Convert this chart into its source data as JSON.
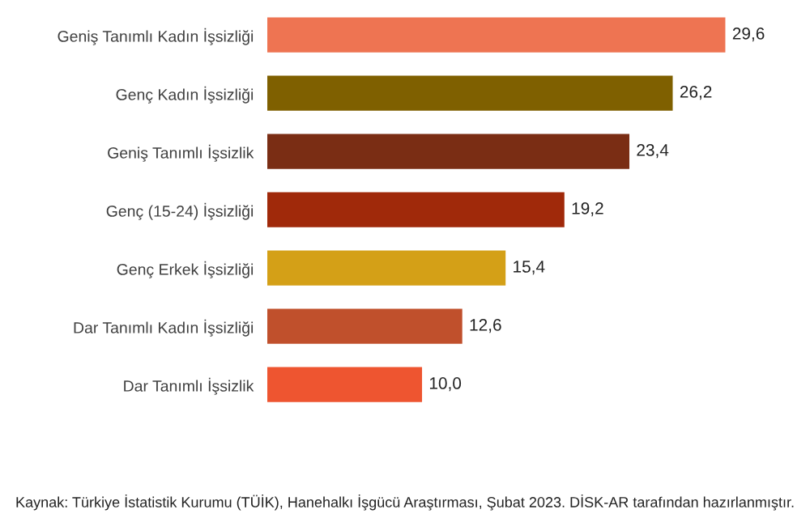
{
  "chart_data": {
    "type": "bar",
    "orientation": "horizontal",
    "categories": [
      "Geniş Tanımlı Kadın İşsizliği",
      "Genç Kadın İşsizliği",
      "Geniş Tanımlı İşsizlik",
      "Genç (15-24) İşsizliği",
      "Genç Erkek İşsizliği",
      "Dar Tanımlı Kadın İşsizliği",
      "Dar Tanımlı İşsizlik"
    ],
    "values": [
      29.6,
      26.2,
      23.4,
      19.2,
      15.4,
      12.6,
      10.0
    ],
    "value_labels": [
      "29,6",
      "26,2",
      "23,4",
      "19,2",
      "15,4",
      "12,6",
      "10,0"
    ],
    "colors": [
      "#ee7452",
      "#7f6000",
      "#7a2d14",
      "#a0290a",
      "#d4a017",
      "#c0502c",
      "#ee5530"
    ],
    "tick_labels": "y",
    "grid": false,
    "legend": false,
    "annotations": [
      "Kaynak: Türkiye İstatistik Kurumu (TÜİK), Hanehalkı İşgücü Araştırması, Şubat 2023. DİSK-AR tarafından hazırlanmıştır."
    ]
  }
}
